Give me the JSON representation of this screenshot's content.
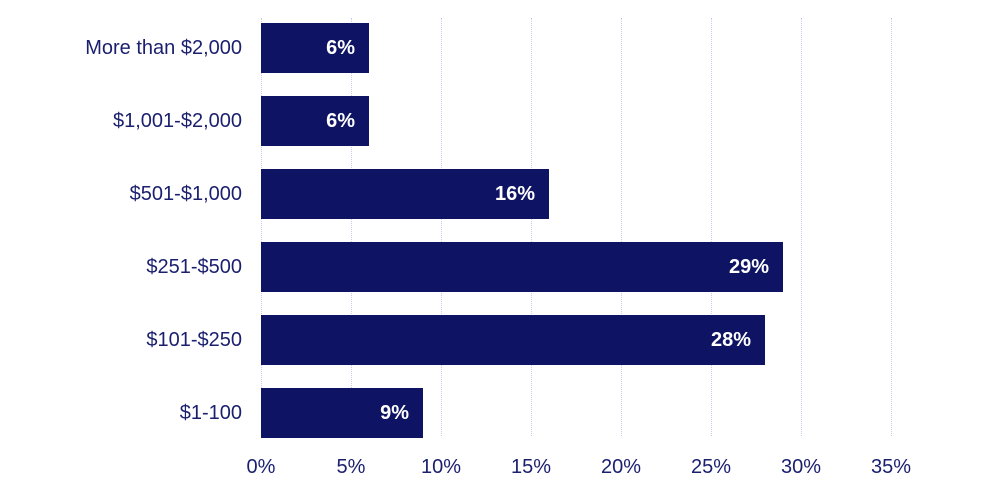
{
  "chart_data": {
    "type": "bar",
    "orientation": "horizontal",
    "title": "",
    "xlabel": "",
    "ylabel": "",
    "categories": [
      "More than $2,000",
      "$1,001-$2,000",
      "$501-$1,000",
      "$251-$500",
      "$101-$250",
      "$1-100"
    ],
    "values": [
      6,
      6,
      16,
      29,
      28,
      9
    ],
    "value_labels": [
      "6%",
      "6%",
      "16%",
      "29%",
      "28%",
      "9%"
    ],
    "xlim": [
      0,
      35
    ],
    "x_ticks": [
      "0%",
      "5%",
      "10%",
      "15%",
      "20%",
      "25%",
      "30%",
      "35%"
    ],
    "grid": true,
    "legend": null,
    "bar_color": "#0e1463"
  }
}
